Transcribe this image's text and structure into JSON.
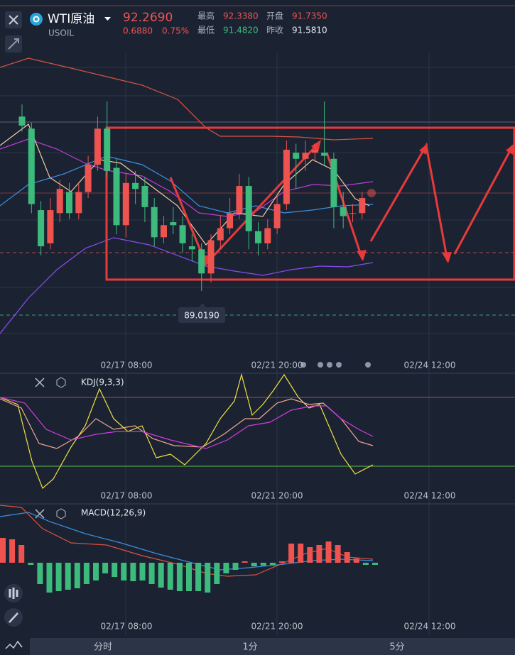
{
  "header": {
    "symbol": "WTI原油",
    "price": "92.2690",
    "code": "USOIL",
    "change": "0.6880",
    "change_pct": "0.75%",
    "stats": [
      {
        "label": "最高",
        "value": "92.3380"
      },
      {
        "label": "开盘",
        "value": "91.7350"
      },
      {
        "label": "最低",
        "value": "91.4820"
      },
      {
        "label": "昨收",
        "value": "91.5810"
      }
    ]
  },
  "main_chart": {
    "candles": [
      {
        "open": 94.8,
        "high": 95.2,
        "low": 94.3,
        "close": 94.5
      },
      {
        "open": 94.4,
        "high": 94.6,
        "low": 91.6,
        "close": 91.9
      },
      {
        "open": 91.7,
        "high": 92.0,
        "low": 90.2,
        "close": 90.5
      },
      {
        "open": 90.6,
        "high": 92.1,
        "low": 90.4,
        "close": 91.7
      },
      {
        "open": 91.6,
        "high": 92.7,
        "low": 91.3,
        "close": 92.4
      },
      {
        "open": 92.3,
        "high": 92.6,
        "low": 91.4,
        "close": 91.6
      },
      {
        "open": 91.6,
        "high": 92.6,
        "low": 91.4,
        "close": 92.3
      },
      {
        "open": 92.3,
        "high": 93.5,
        "low": 92.1,
        "close": 93.2
      },
      {
        "open": 93.2,
        "high": 94.8,
        "low": 93.0,
        "close": 94.4
      },
      {
        "open": 94.4,
        "high": 95.3,
        "low": 92.8,
        "close": 93.0
      },
      {
        "open": 93.1,
        "high": 93.4,
        "low": 90.9,
        "close": 91.2
      },
      {
        "open": 91.2,
        "high": 92.9,
        "low": 90.8,
        "close": 92.6
      },
      {
        "open": 92.6,
        "high": 93.0,
        "low": 91.9,
        "close": 92.4
      },
      {
        "open": 92.5,
        "high": 92.8,
        "low": 91.3,
        "close": 91.8
      },
      {
        "open": 91.8,
        "high": 92.1,
        "low": 90.5,
        "close": 90.8
      },
      {
        "open": 90.8,
        "high": 91.5,
        "low": 90.6,
        "close": 91.2
      },
      {
        "open": 91.3,
        "high": 91.8,
        "low": 90.9,
        "close": 91.2
      },
      {
        "open": 91.2,
        "high": 91.5,
        "low": 90.3,
        "close": 90.6
      },
      {
        "open": 90.5,
        "high": 90.9,
        "low": 90.0,
        "close": 90.4
      },
      {
        "open": 90.4,
        "high": 90.6,
        "low": 89.02,
        "close": 89.6
      },
      {
        "open": 89.6,
        "high": 90.9,
        "low": 89.3,
        "close": 90.7
      },
      {
        "open": 90.7,
        "high": 91.5,
        "low": 90.4,
        "close": 91.1
      },
      {
        "open": 91.1,
        "high": 92.1,
        "low": 90.9,
        "close": 91.6
      },
      {
        "open": 91.6,
        "high": 92.9,
        "low": 91.4,
        "close": 92.5
      },
      {
        "open": 92.5,
        "high": 92.8,
        "low": 90.4,
        "close": 91.0
      },
      {
        "open": 91.0,
        "high": 91.3,
        "low": 90.2,
        "close": 90.6
      },
      {
        "open": 90.6,
        "high": 91.4,
        "low": 90.4,
        "close": 91.1
      },
      {
        "open": 91.1,
        "high": 92.2,
        "low": 90.9,
        "close": 91.9
      },
      {
        "open": 91.9,
        "high": 94.0,
        "low": 91.7,
        "close": 93.7
      },
      {
        "open": 93.6,
        "high": 93.9,
        "low": 92.4,
        "close": 93.4
      },
      {
        "open": 93.4,
        "high": 94.0,
        "low": 93.0,
        "close": 93.6
      },
      {
        "open": 93.6,
        "high": 93.9,
        "low": 93.3,
        "close": 93.7
      },
      {
        "open": 93.6,
        "high": 95.3,
        "low": 93.2,
        "close": 93.5
      },
      {
        "open": 93.4,
        "high": 93.6,
        "low": 91.1,
        "close": 91.8
      },
      {
        "open": 91.8,
        "high": 92.3,
        "low": 91.1,
        "close": 91.5
      },
      {
        "open": 91.6,
        "high": 91.9,
        "low": 91.3,
        "close": 91.6
      },
      {
        "open": 91.6,
        "high": 92.3,
        "low": 91.4,
        "close": 92.1
      }
    ],
    "low_marker": "89.0190",
    "date_labels": [
      "02/17 08:00",
      "02/21 20:00",
      "02/24 12:00"
    ]
  },
  "kdj": {
    "title": "KDJ(9,3,3)",
    "date_labels": [
      "02/17 08:00",
      "02/21 20:00",
      "02/24 12:00"
    ]
  },
  "macd": {
    "title": "MACD(12,26,9)",
    "hist": [
      0.35,
      0.33,
      0.25,
      -0.03,
      -0.3,
      -0.42,
      -0.4,
      -0.38,
      -0.36,
      -0.3,
      -0.25,
      -0.15,
      -0.2,
      -0.25,
      -0.26,
      -0.25,
      -0.3,
      -0.35,
      -0.38,
      -0.4,
      -0.4,
      -0.4,
      -0.42,
      -0.3,
      -0.15,
      -0.1,
      0.02,
      -0.05,
      -0.04,
      -0.03,
      0.02,
      0.27,
      0.27,
      0.22,
      0.25,
      0.3,
      0.25,
      0.15,
      0.06,
      -0.03,
      -0.03
    ],
    "date_labels": [
      "02/17 08:00",
      "02/21 20:00",
      "02/24 12:00"
    ]
  },
  "tabs": [
    "分时",
    "1分",
    "5分"
  ]
}
